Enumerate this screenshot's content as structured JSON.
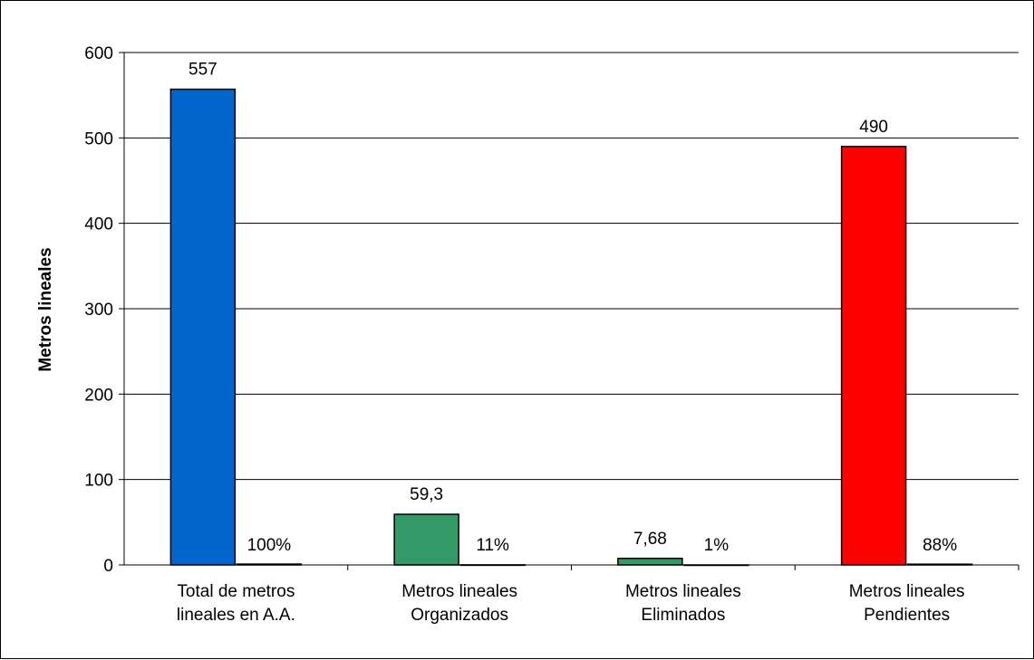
{
  "chart_data": {
    "type": "bar",
    "title": "",
    "ylabel": "Metros lineales",
    "xlabel": "",
    "ylim": [
      0,
      600
    ],
    "yticks": [
      0,
      100,
      200,
      300,
      400,
      500,
      600
    ],
    "grid": true,
    "categories": [
      [
        "Total de metros",
        "lineales en A.A."
      ],
      [
        "Metros lineales",
        "Organizados"
      ],
      [
        "Metros lineales",
        "Eliminados"
      ],
      [
        "Metros lineales",
        "Pendientes"
      ]
    ],
    "series": [
      {
        "values": [
          557,
          59.3,
          7.68,
          490
        ],
        "labels": [
          "557",
          "59,3",
          "7,68",
          "490"
        ],
        "colors": [
          "#0066cc",
          "#339966",
          "#339966",
          "#ff0000"
        ]
      },
      {
        "values": [
          1,
          0.11,
          0.01,
          0.88
        ],
        "labels": [
          "100%",
          "11%",
          "1%",
          "88%"
        ],
        "colors": [
          "#000000",
          "#000000",
          "#000000",
          "#000000"
        ]
      }
    ]
  }
}
